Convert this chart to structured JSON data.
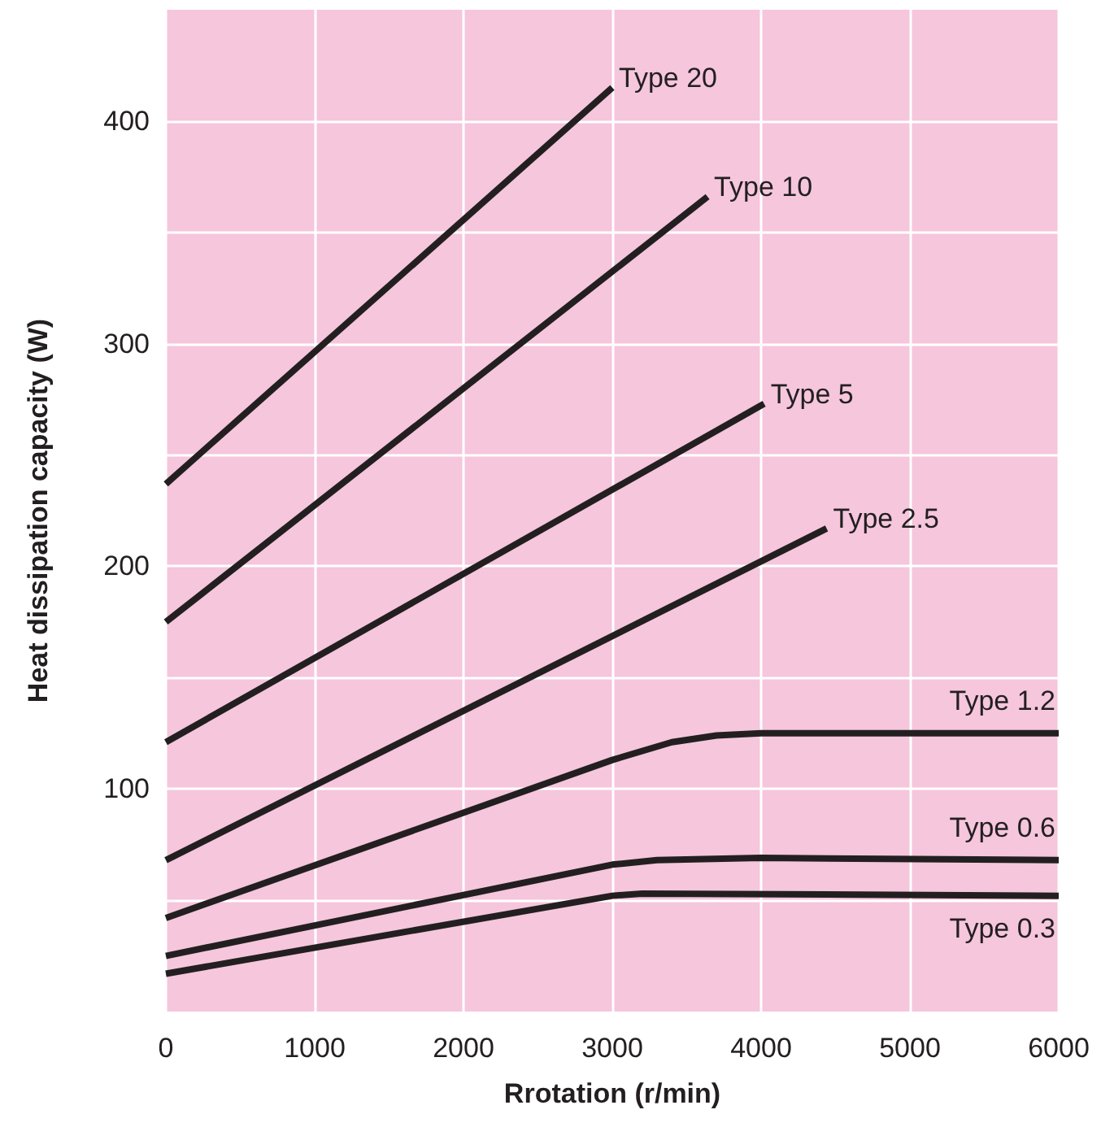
{
  "chart_data": {
    "type": "line",
    "xlabel": "Rrotation (r/min)",
    "ylabel": "Heat dissipation capacity (W)",
    "xlim": [
      0,
      6000
    ],
    "ylim": [
      0,
      450
    ],
    "xticks": [
      0,
      1000,
      2000,
      3000,
      4000,
      5000,
      6000
    ],
    "yticks": [
      {
        "value": 50,
        "label": null
      },
      100,
      {
        "value": 150,
        "label": null
      },
      200,
      {
        "value": 250,
        "label": null
      },
      300,
      {
        "value": 350,
        "label": null
      },
      400
    ],
    "grid": true,
    "legend": false,
    "marker": "none",
    "line_style": "solid",
    "series": [
      {
        "name": "Type 20",
        "color": "#231f20",
        "x": [
          0,
          3000
        ],
        "values": [
          237,
          415
        ]
      },
      {
        "name": "Type 10",
        "color": "#231f20",
        "x": [
          0,
          3640
        ],
        "values": [
          175,
          366
        ]
      },
      {
        "name": "Type 5",
        "color": "#231f20",
        "x": [
          0,
          4020
        ],
        "values": [
          121,
          273
        ]
      },
      {
        "name": "Type 2.5",
        "color": "#231f20",
        "x": [
          0,
          4440
        ],
        "values": [
          68,
          217
        ]
      },
      {
        "name": "Type 1.2",
        "color": "#231f20",
        "x": [
          0,
          3000,
          3400,
          3700,
          4000,
          6000
        ],
        "values": [
          42,
          113,
          121,
          124,
          125,
          125
        ]
      },
      {
        "name": "Type 0.6",
        "color": "#231f20",
        "x": [
          0,
          3000,
          3300,
          4000,
          6000
        ],
        "values": [
          25,
          66,
          68,
          69,
          68
        ]
      },
      {
        "name": "Type 0.3",
        "color": "#231f20",
        "x": [
          0,
          3000,
          3200,
          6000
        ],
        "values": [
          17,
          52,
          53,
          52
        ]
      }
    ]
  }
}
